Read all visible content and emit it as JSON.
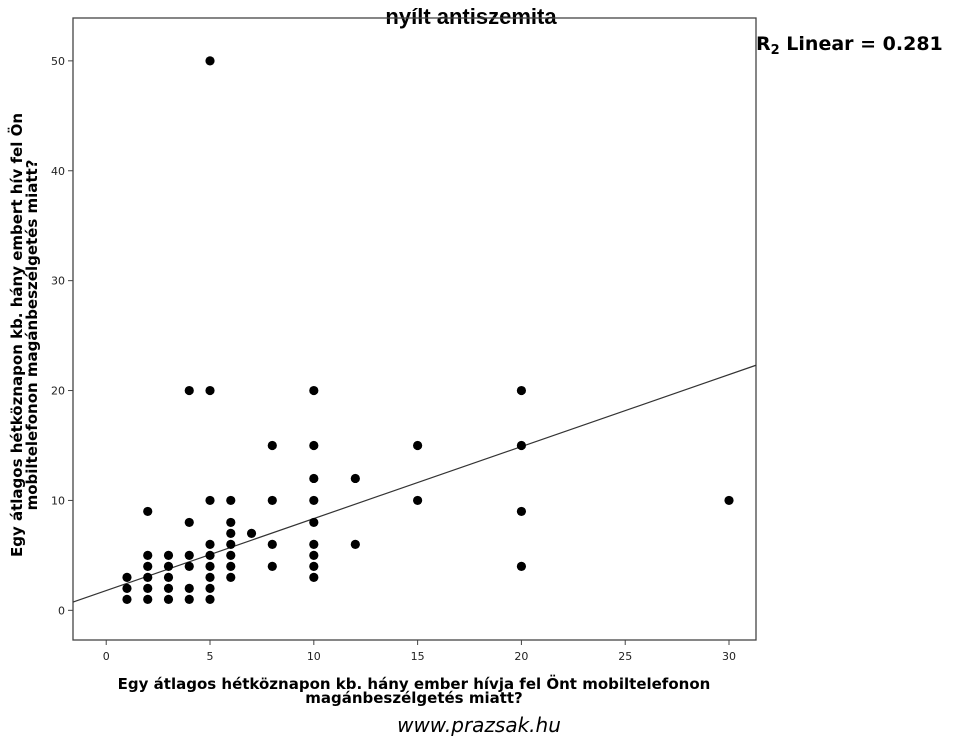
{
  "watermark": "www.prazsak.hu",
  "chart_data": {
    "type": "scatter",
    "title": "nyílt antiszemita",
    "xlabel": [
      "Egy átlagos hétköznapon kb. hány ember hívja fel Önt mobiltelefonon",
      "magánbeszélgetés miatt?"
    ],
    "ylabel": [
      "Egy átlagos hétköznapon kb. hány embert hív fel Ön",
      "mobiltelefonon magánbeszélgetés miatt?"
    ],
    "xlim": [
      -1.6,
      31.3
    ],
    "ylim": [
      -2.7,
      53.9
    ],
    "xticks": [
      0,
      5,
      10,
      15,
      20,
      25,
      30
    ],
    "yticks": [
      0,
      10,
      20,
      30,
      40,
      50
    ],
    "grid": false,
    "fit_line": {
      "type": "linear",
      "label": "R",
      "sub": "2",
      "suffix": " Linear = 0.281",
      "intercept": 1.8,
      "slope": 0.655
    },
    "points": [
      [
        1,
        1
      ],
      [
        1,
        2
      ],
      [
        1,
        3
      ],
      [
        2,
        1
      ],
      [
        2,
        2
      ],
      [
        2,
        3
      ],
      [
        2,
        4
      ],
      [
        2,
        5
      ],
      [
        2,
        9
      ],
      [
        3,
        1
      ],
      [
        3,
        2
      ],
      [
        3,
        3
      ],
      [
        3,
        4
      ],
      [
        3,
        5
      ],
      [
        4,
        1
      ],
      [
        4,
        2
      ],
      [
        4,
        4
      ],
      [
        4,
        5
      ],
      [
        4,
        8
      ],
      [
        4,
        20
      ],
      [
        5,
        1
      ],
      [
        5,
        2
      ],
      [
        5,
        3
      ],
      [
        5,
        4
      ],
      [
        5,
        5
      ],
      [
        5,
        6
      ],
      [
        5,
        10
      ],
      [
        5,
        20
      ],
      [
        5,
        50
      ],
      [
        6,
        3
      ],
      [
        6,
        4
      ],
      [
        6,
        5
      ],
      [
        6,
        6
      ],
      [
        6,
        7
      ],
      [
        6,
        8
      ],
      [
        6,
        10
      ],
      [
        7,
        7
      ],
      [
        8,
        4
      ],
      [
        8,
        6
      ],
      [
        8,
        10
      ],
      [
        8,
        15
      ],
      [
        10,
        3
      ],
      [
        10,
        4
      ],
      [
        10,
        5
      ],
      [
        10,
        6
      ],
      [
        10,
        8
      ],
      [
        10,
        10
      ],
      [
        10,
        12
      ],
      [
        10,
        15
      ],
      [
        10,
        20
      ],
      [
        12,
        6
      ],
      [
        12,
        12
      ],
      [
        15,
        10
      ],
      [
        15,
        15
      ],
      [
        20,
        4
      ],
      [
        20,
        9
      ],
      [
        20,
        15
      ],
      [
        20,
        20
      ],
      [
        30,
        10
      ]
    ]
  }
}
